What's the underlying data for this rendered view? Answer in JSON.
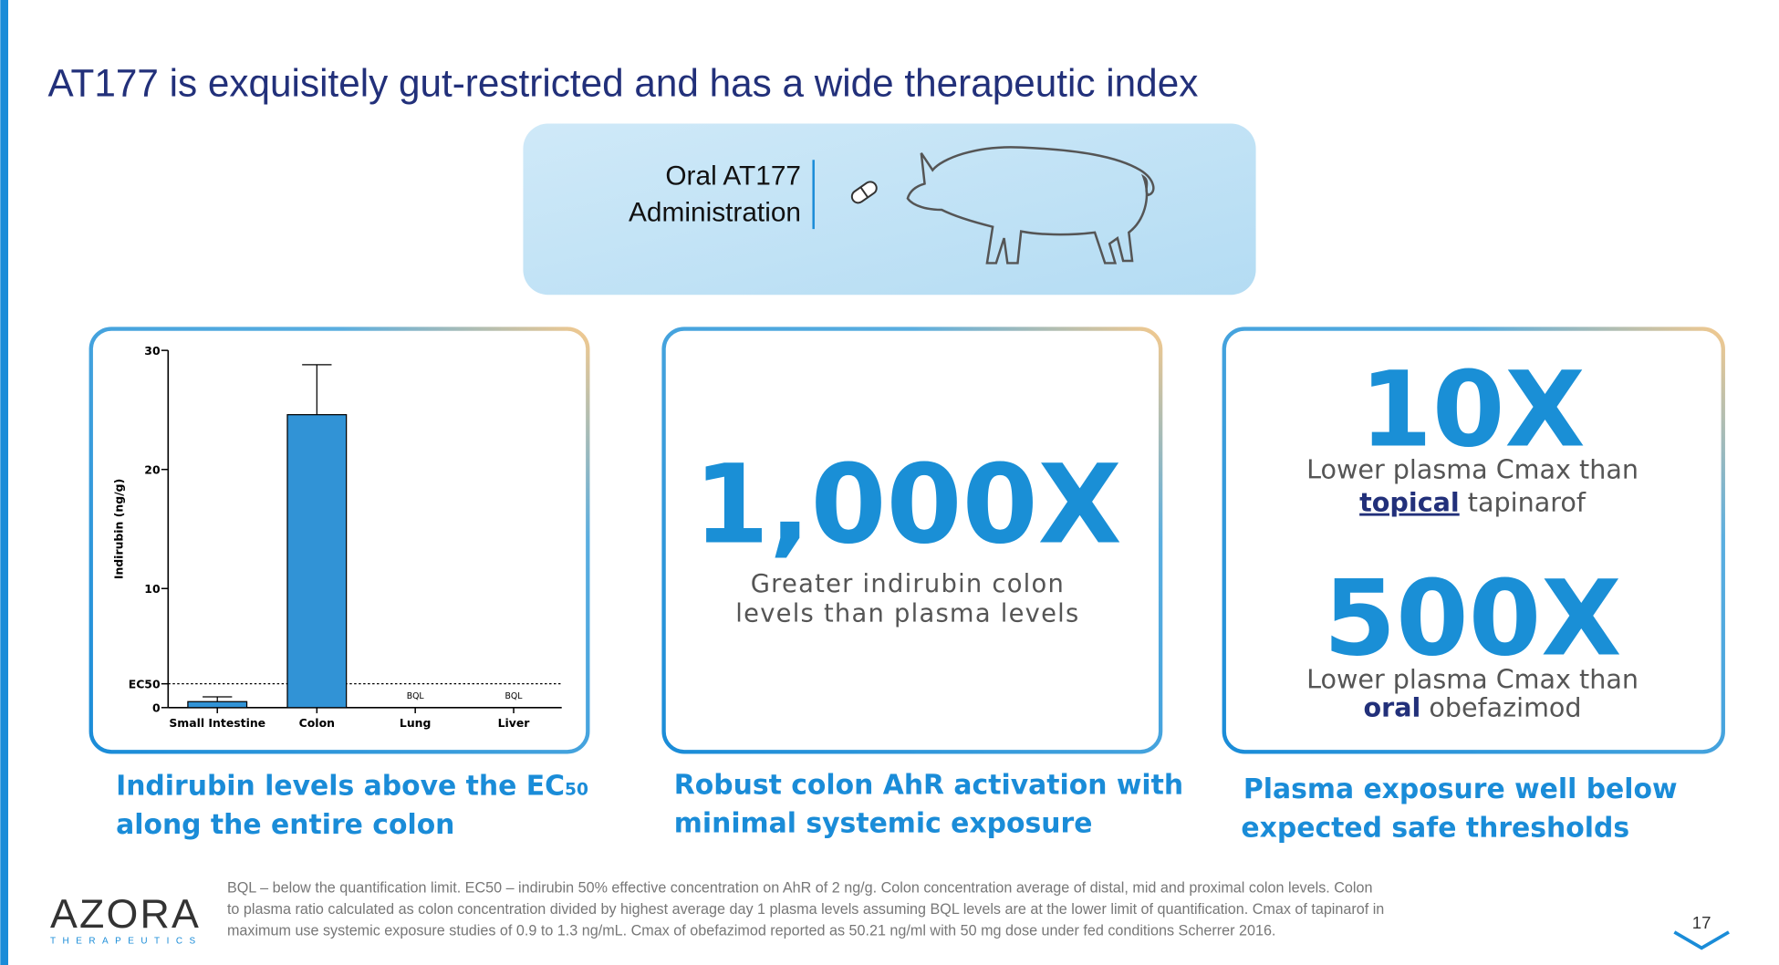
{
  "title": "AT177 is exquisitely gut-restricted and has a wide therapeutic index",
  "callout": {
    "lines": [
      "Oral AT177",
      "Administration"
    ]
  },
  "chart_data": {
    "type": "bar",
    "y_label": "Indirubin (ng/g)",
    "categories": [
      "Small Intestine",
      "Colon",
      "Lung",
      "Liver"
    ],
    "values": [
      0.5,
      24.6,
      null,
      null
    ],
    "errors": [
      0.4,
      4.2,
      null,
      null
    ],
    "value_labels": [
      null,
      null,
      "BQL",
      "BQL"
    ],
    "color": "#3193d6",
    "ylim": [
      0,
      30
    ],
    "yticks": [
      0,
      {
        "value": 2,
        "label": "EC50"
      },
      10,
      20,
      30
    ],
    "reference_line": 2
  },
  "panels": [
    {
      "headline": "1,000X",
      "text": [
        "Greater indirubin colon",
        "levels than plasma levels"
      ]
    },
    {
      "blocks": [
        {
          "headline": "10X",
          "line1": "Lower plasma Cmax than",
          "emph": "topical",
          "rest": " tapinarof"
        },
        {
          "headline": "500X",
          "line1": "Lower plasma Cmax than",
          "emph": "oral",
          "rest": " obefazimod"
        }
      ]
    }
  ],
  "captions": [
    {
      "line1": "Indirubin levels above the EC",
      "sub": "50",
      "line2": "along the entire colon"
    },
    {
      "line1": "Robust colon AhR activation with",
      "line2": "minimal systemic exposure"
    },
    {
      "line1": "Plasma exposure well below",
      "line2": "expected safe thresholds"
    }
  ],
  "footnote": [
    "BQL – below the quantification limit.  EC50 – indirubin 50% effective concentration on AhR of 2 ng/g.  Colon concentration average of distal, mid and proximal colon levels.  Colon",
    "to plasma ratio calculated as colon concentration divided by highest average day 1 plasma levels assuming BQL levels are at the lower limit of quantification. Cmax of tapinarof in",
    "maximum use systemic exposure studies of 0.9 to 1.3 ng/mL. Cmax of obefazimod reported as 50.21 ng/ml with 50 mg dose under fed conditions Scherrer 2016."
  ],
  "logo": {
    "name": "AZORA",
    "tagline": "THERAPEUTICS"
  },
  "page_number": "17"
}
